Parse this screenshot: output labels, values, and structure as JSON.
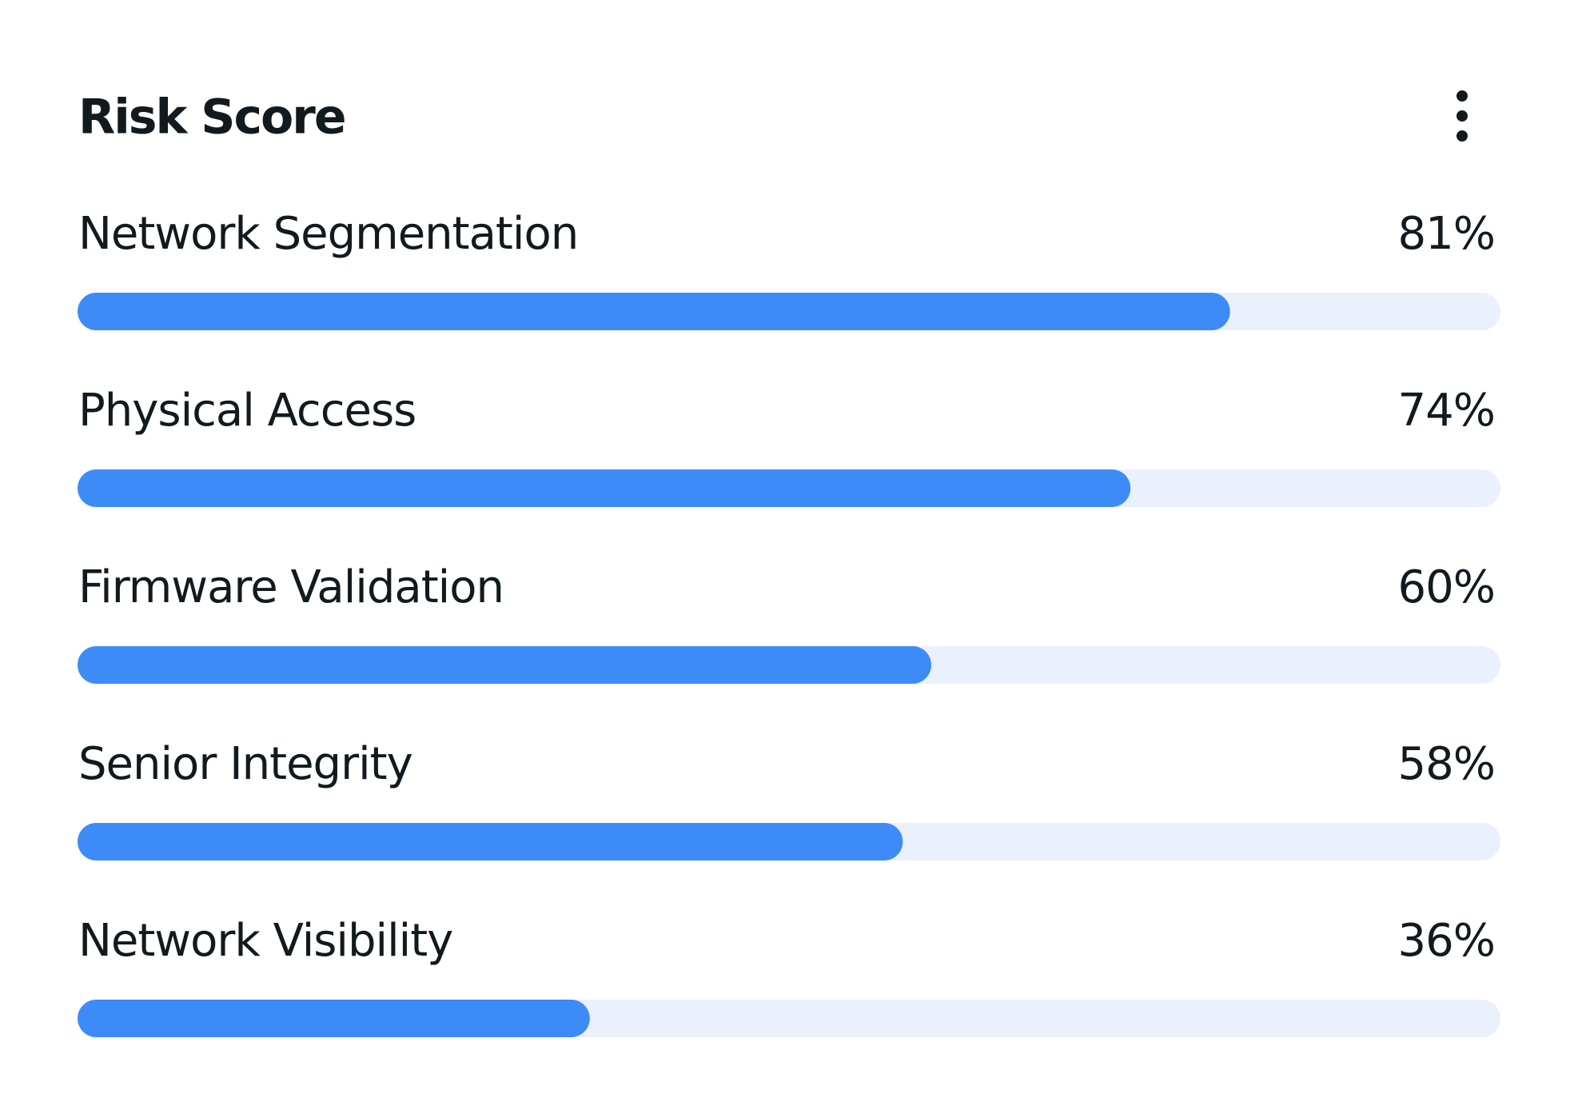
{
  "chart_data": {
    "type": "bar",
    "orientation": "horizontal",
    "title": "Risk Score",
    "categories": [
      "Network Segmentation",
      "Physical Access",
      "Firmware Validation",
      "Senior Integrity",
      "Network Visibility"
    ],
    "values": [
      81,
      74,
      60,
      58,
      36
    ],
    "value_labels": [
      "81%",
      "74%",
      "60%",
      "58%",
      "36%"
    ],
    "xlim": [
      0,
      100
    ],
    "color": "#3d8bf7",
    "track_color": "#eaf1fd"
  }
}
